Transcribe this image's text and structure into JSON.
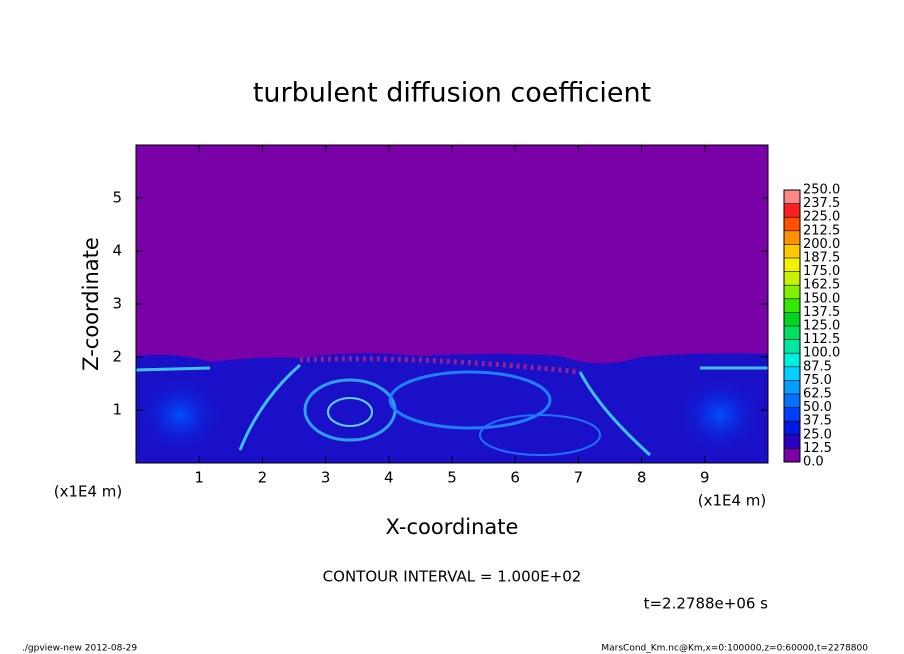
{
  "chart_data": {
    "type": "contour",
    "title": "turbulent diffusion coefficient",
    "x_label": "X-coordinate",
    "y_label": "Z-coordinate",
    "x_unit": "(x1E4 m)",
    "xlim": [
      0,
      10
    ],
    "xticks": [
      1,
      2,
      3,
      4,
      5,
      6,
      7,
      8,
      9
    ],
    "ylim": [
      0,
      6
    ],
    "yticks": [
      1,
      2,
      3,
      4,
      5
    ],
    "colorbar": {
      "ticks": [
        {
          "value": 0,
          "label": "0.0"
        },
        12.5,
        {
          "value": 25,
          "label": "25.0"
        },
        37.5,
        {
          "value": 50,
          "label": "50.0"
        },
        62.5,
        {
          "value": 75,
          "label": "75.0"
        },
        87.5,
        {
          "value": 100,
          "label": "100.0"
        },
        112.5,
        {
          "value": 125,
          "label": "125.0"
        },
        137.5,
        {
          "value": 150,
          "label": "150.0"
        },
        162.5,
        {
          "value": 175,
          "label": "175.0"
        },
        187.5,
        {
          "value": 200,
          "label": "200.0"
        },
        212.5,
        {
          "value": 225,
          "label": "225.0"
        },
        237.5,
        {
          "value": 250,
          "label": "250.0"
        }
      ],
      "colors": [
        "#7a00a8",
        "#2a00c0",
        "#0018e0",
        "#0040f8",
        "#0070ff",
        "#00a0ff",
        "#00d0ff",
        "#00f0e0",
        "#00e8a0",
        "#00e060",
        "#00d820",
        "#30e800",
        "#80f000",
        "#c8f000",
        "#f0f000",
        "#ffc800",
        "#ff9000",
        "#ff5000",
        "#ff2020",
        "#ff8888"
      ]
    },
    "contour_interval": "CONTOUR INTERVAL = 1.000E+02",
    "time_label": "t=2.2788e+06 s",
    "footer_left": "./gpview-new  2012-08-29",
    "footer_right": "MarsCond_Km.nc@Km,x=0:100000,z=0:60000,t=2278800"
  }
}
